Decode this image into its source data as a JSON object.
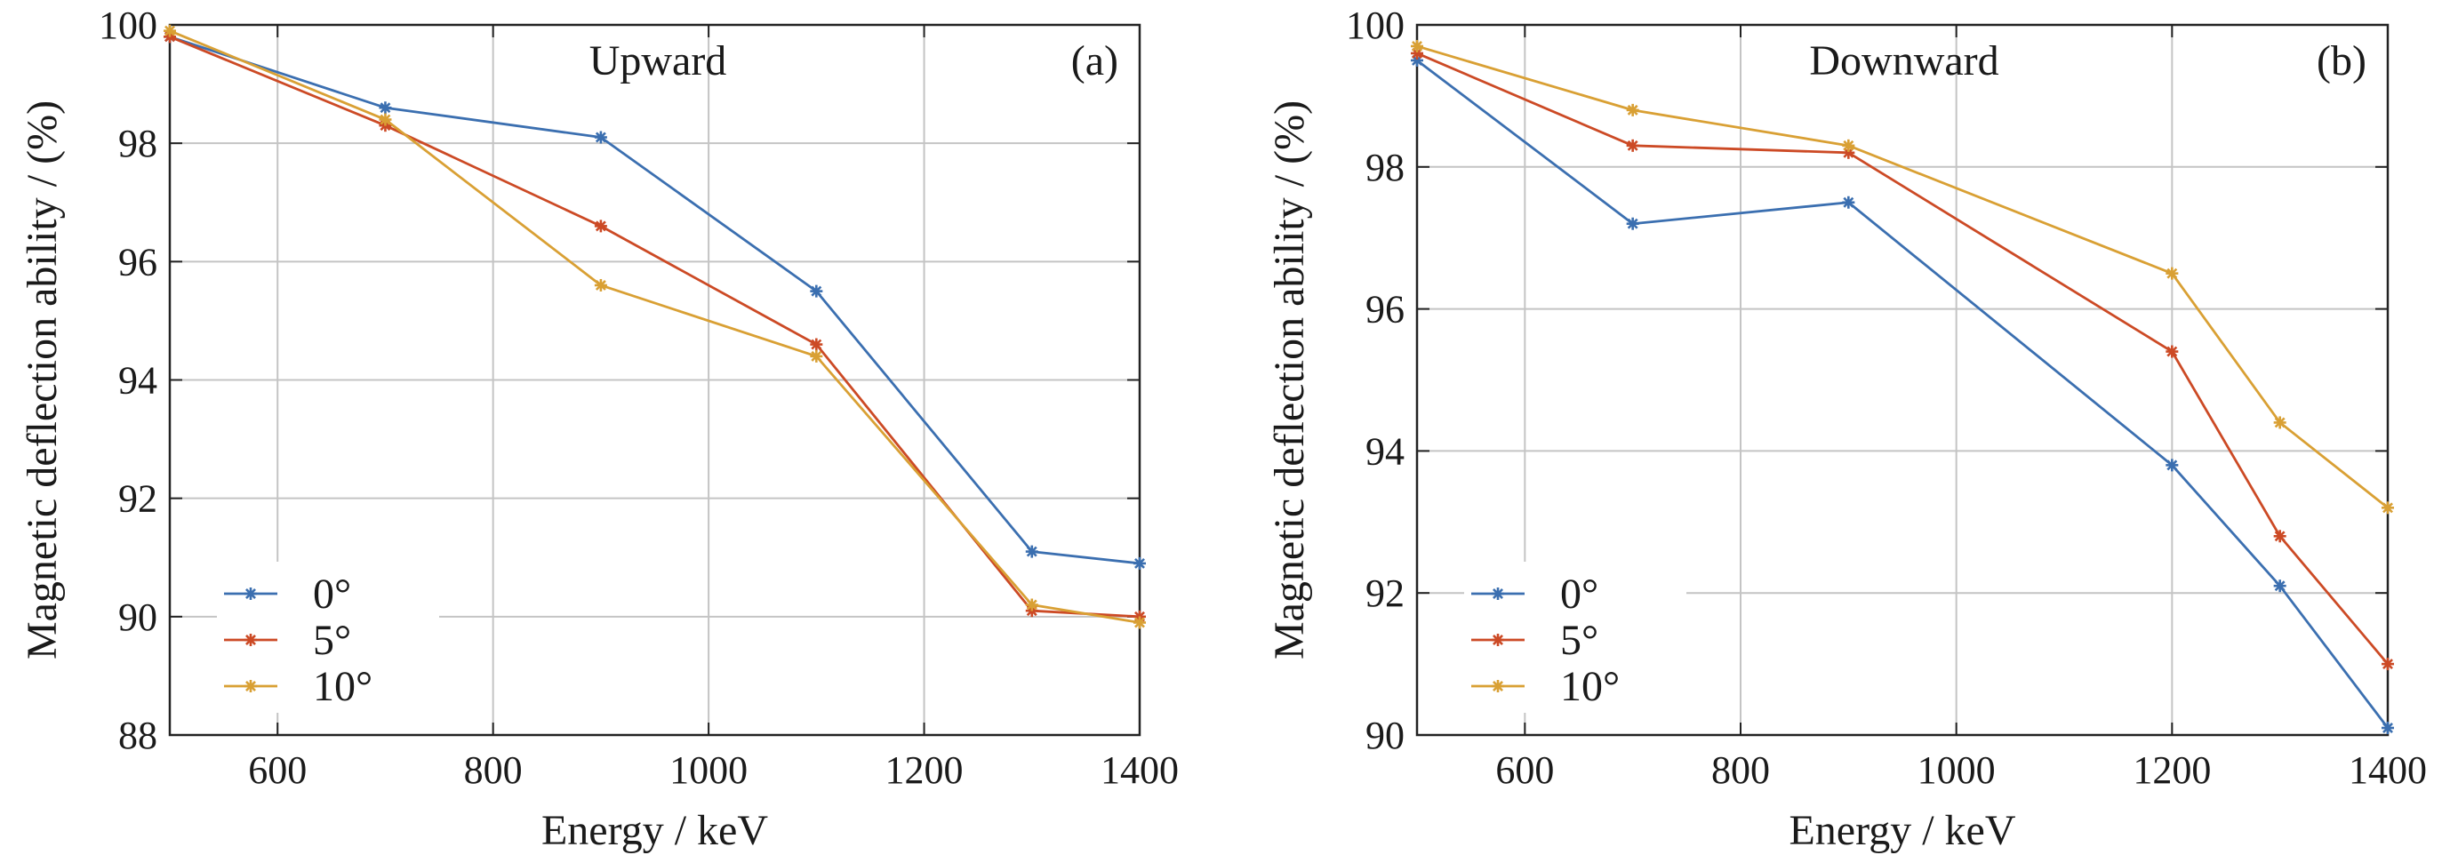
{
  "chart_data": [
    {
      "type": "line",
      "panel_label": "(a)",
      "title": "Upward",
      "xlabel": "Energy / keV",
      "ylabel": "Magnetic deflection ability / (%)",
      "xlim": [
        500,
        1400
      ],
      "ylim": [
        88,
        100
      ],
      "xticks": [
        600,
        800,
        1000,
        1200,
        1400
      ],
      "yticks": [
        88,
        90,
        92,
        94,
        96,
        98,
        100
      ],
      "grid": true,
      "legend_position": "lower-left",
      "x": [
        500,
        700,
        900,
        1100,
        1300,
        1400
      ],
      "series": [
        {
          "name": "0°",
          "color": "#3b6fb0",
          "values": [
            99.8,
            98.6,
            98.1,
            95.5,
            91.1,
            90.9
          ]
        },
        {
          "name": "5°",
          "color": "#cc4a25",
          "values": [
            99.8,
            98.3,
            96.6,
            94.6,
            90.1,
            90.0
          ]
        },
        {
          "name": "10°",
          "color": "#d9a034",
          "values": [
            99.9,
            98.4,
            95.6,
            94.4,
            90.2,
            89.9
          ]
        }
      ]
    },
    {
      "type": "line",
      "panel_label": "(b)",
      "title": "Downward",
      "xlabel": "Energy / keV",
      "ylabel": "Magnetic deflection ability / (%)",
      "xlim": [
        500,
        1400
      ],
      "ylim": [
        90,
        100
      ],
      "xticks": [
        600,
        800,
        1000,
        1200,
        1400
      ],
      "yticks": [
        90,
        92,
        94,
        96,
        98,
        100
      ],
      "grid": true,
      "legend_position": "lower-left",
      "x": [
        500,
        700,
        900,
        1200,
        1300,
        1400
      ],
      "series": [
        {
          "name": "0°",
          "color": "#3b6fb0",
          "values": [
            99.5,
            97.2,
            97.5,
            93.8,
            92.1,
            90.1
          ]
        },
        {
          "name": "5°",
          "color": "#cc4a25",
          "values": [
            99.6,
            98.3,
            98.2,
            95.4,
            92.8,
            91.0
          ]
        },
        {
          "name": "10°",
          "color": "#d9a034",
          "values": [
            99.7,
            98.8,
            98.3,
            96.5,
            94.4,
            93.2
          ]
        }
      ]
    }
  ]
}
